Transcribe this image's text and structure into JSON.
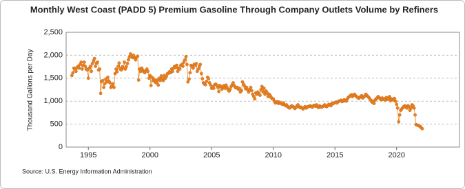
{
  "chart_data": {
    "type": "line",
    "title": "Monthly West Coast (PADD 5) Premium Gasoline Through Company Outlets Volume by Refiners",
    "y_label": "Thousand Gallons per Day",
    "source": "Source: U.S. Energy Information Administration",
    "xlim": [
      1993.2,
      2025.1
    ],
    "xticks": [
      1995,
      2000,
      2005,
      2010,
      2015,
      2020
    ],
    "ylim": [
      0,
      2500
    ],
    "yticks": [
      0,
      500,
      {
        "value": 1000,
        "label": "1,000"
      },
      {
        "value": 1500,
        "label": "1,500"
      },
      {
        "value": 2000,
        "label": "2,000"
      },
      {
        "value": 2500,
        "label": "2,500"
      }
    ],
    "grid": true,
    "x": [
      1993.67,
      1993.75,
      1993.83,
      1993.92,
      1994.0,
      1994.08,
      1994.17,
      1994.25,
      1994.33,
      1994.42,
      1994.5,
      1994.58,
      1994.67,
      1994.75,
      1994.83,
      1994.92,
      1995.0,
      1995.08,
      1995.17,
      1995.25,
      1995.33,
      1995.42,
      1995.5,
      1995.58,
      1995.67,
      1995.75,
      1995.83,
      1995.92,
      1996.0,
      1996.08,
      1996.17,
      1996.25,
      1996.33,
      1996.42,
      1996.5,
      1996.58,
      1996.67,
      1996.75,
      1996.83,
      1996.92,
      1997.0,
      1997.08,
      1997.17,
      1997.25,
      1997.33,
      1997.42,
      1997.5,
      1997.58,
      1997.67,
      1997.75,
      1997.83,
      1997.92,
      1998.0,
      1998.08,
      1998.17,
      1998.25,
      1998.33,
      1998.42,
      1998.5,
      1998.58,
      1998.67,
      1998.75,
      1998.83,
      1998.92,
      1999.0,
      1999.08,
      1999.17,
      1999.25,
      1999.33,
      1999.42,
      1999.5,
      1999.58,
      1999.67,
      1999.75,
      1999.83,
      1999.92,
      2000.0,
      2000.08,
      2000.17,
      2000.25,
      2000.33,
      2000.42,
      2000.5,
      2000.58,
      2000.67,
      2000.75,
      2000.83,
      2000.92,
      2001.0,
      2001.08,
      2001.17,
      2001.25,
      2001.33,
      2001.42,
      2001.5,
      2001.58,
      2001.67,
      2001.75,
      2001.83,
      2001.92,
      2002.0,
      2002.08,
      2002.17,
      2002.25,
      2002.33,
      2002.42,
      2002.5,
      2002.58,
      2002.67,
      2002.75,
      2002.83,
      2002.92,
      2003.0,
      2003.08,
      2003.17,
      2003.25,
      2003.33,
      2003.42,
      2003.5,
      2003.58,
      2003.67,
      2003.75,
      2003.83,
      2003.92,
      2004.0,
      2004.08,
      2004.17,
      2004.25,
      2004.33,
      2004.42,
      2004.5,
      2004.58,
      2004.67,
      2004.75,
      2004.83,
      2004.92,
      2005.0,
      2005.08,
      2005.17,
      2005.25,
      2005.33,
      2005.42,
      2005.5,
      2005.58,
      2005.67,
      2005.75,
      2005.83,
      2005.92,
      2006.0,
      2006.08,
      2006.17,
      2006.25,
      2006.33,
      2006.42,
      2006.5,
      2006.58,
      2006.67,
      2006.75,
      2006.83,
      2006.92,
      2007.0,
      2007.08,
      2007.17,
      2007.25,
      2007.33,
      2007.42,
      2007.5,
      2007.58,
      2007.67,
      2007.75,
      2007.83,
      2007.92,
      2008.0,
      2008.08,
      2008.17,
      2008.25,
      2008.33,
      2008.42,
      2008.5,
      2008.58,
      2008.67,
      2008.75,
      2008.83,
      2008.92,
      2009.0,
      2009.08,
      2009.17,
      2009.25,
      2009.33,
      2009.42,
      2009.5,
      2009.58,
      2009.67,
      2009.75,
      2009.83,
      2009.92,
      2010.0,
      2010.08,
      2010.17,
      2010.25,
      2010.33,
      2010.42,
      2010.5,
      2010.58,
      2010.67,
      2010.75,
      2010.83,
      2010.92,
      2011.0,
      2011.08,
      2011.17,
      2011.25,
      2011.33,
      2011.42,
      2011.5,
      2011.58,
      2011.67,
      2011.75,
      2011.83,
      2011.92,
      2012.0,
      2012.08,
      2012.17,
      2012.25,
      2012.33,
      2012.42,
      2012.5,
      2012.58,
      2012.67,
      2012.75,
      2012.83,
      2012.92,
      2013.0,
      2013.08,
      2013.17,
      2013.25,
      2013.33,
      2013.42,
      2013.5,
      2013.58,
      2013.67,
      2013.75,
      2013.83,
      2013.92,
      2014.0,
      2014.08,
      2014.17,
      2014.25,
      2014.33,
      2014.42,
      2014.5,
      2014.58,
      2014.67,
      2014.75,
      2014.83,
      2014.92,
      2015.0,
      2015.08,
      2015.17,
      2015.25,
      2015.33,
      2015.42,
      2015.5,
      2015.58,
      2015.67,
      2015.75,
      2015.83,
      2015.92,
      2016.0,
      2016.08,
      2016.17,
      2016.25,
      2016.33,
      2016.42,
      2016.5,
      2016.58,
      2016.67,
      2016.75,
      2016.83,
      2016.92,
      2017.0,
      2017.08,
      2017.17,
      2017.25,
      2017.33,
      2017.42,
      2017.5,
      2017.58,
      2017.67,
      2017.75,
      2017.83,
      2017.92,
      2018.0,
      2018.08,
      2018.17,
      2018.25,
      2018.33,
      2018.42,
      2018.5,
      2018.58,
      2018.67,
      2018.75,
      2018.83,
      2018.92,
      2019.0,
      2019.08,
      2019.17,
      2019.25,
      2019.33,
      2019.42,
      2019.5,
      2019.58,
      2019.67,
      2019.75,
      2019.83,
      2019.92,
      2020.0,
      2020.08,
      2020.17,
      2020.25,
      2020.33,
      2020.42,
      2020.5,
      2020.58,
      2020.67,
      2020.75,
      2020.83,
      2020.92,
      2021.0,
      2021.08,
      2021.17,
      2021.25,
      2021.33,
      2021.42,
      2021.5,
      2021.58,
      2021.67,
      2021.75,
      2021.83,
      2021.92,
      2022.0,
      2022.08
    ],
    "series": [
      {
        "color": "#e8821e",
        "values": [
          1560,
          1620,
          1720,
          1700,
          1650,
          1730,
          1760,
          1720,
          1800,
          1850,
          1700,
          1780,
          1850,
          1760,
          1700,
          1680,
          1500,
          1720,
          1760,
          1650,
          1820,
          1880,
          1930,
          1760,
          1830,
          1850,
          1680,
          1700,
          1170,
          1430,
          1450,
          1300,
          1380,
          1480,
          1420,
          1520,
          1440,
          1400,
          1300,
          1330,
          1380,
          1300,
          1600,
          1700,
          1640,
          1760,
          1830,
          1700,
          1680,
          1750,
          1720,
          1850,
          1700,
          1750,
          1820,
          1900,
          1960,
          2030,
          1980,
          1950,
          2000,
          1940,
          1900,
          1960,
          1980,
          1460,
          1700,
          1650,
          1720,
          1680,
          1640,
          1620,
          1660,
          1700,
          1650,
          1500,
          1560,
          1340,
          1520,
          1450,
          1480,
          1420,
          1400,
          1460,
          1350,
          1500,
          1450,
          1550,
          1500,
          1450,
          1560,
          1500,
          1540,
          1600,
          1610,
          1640,
          1620,
          1700,
          1650,
          1720,
          1760,
          1730,
          1780,
          1650,
          1720,
          1700,
          1780,
          1800,
          1760,
          1850,
          1900,
          1970,
          1800,
          1420,
          1480,
          1620,
          1780,
          1750,
          1720,
          1800,
          1780,
          1820,
          1650,
          1700,
          1760,
          1800,
          1600,
          1490,
          1400,
          1370,
          1360,
          1430,
          1520,
          1490,
          1400,
          1350,
          1280,
          1310,
          1280,
          1360,
          1370,
          1350,
          1300,
          1210,
          1340,
          1320,
          1260,
          1300,
          1340,
          1280,
          1350,
          1300,
          1250,
          1220,
          1260,
          1320,
          1360,
          1400,
          1340,
          1300,
          1290,
          1300,
          1260,
          1280,
          1200,
          1230,
          1420,
          1370,
          1330,
          1270,
          1300,
          1250,
          1200,
          1250,
          1300,
          1230,
          1150,
          1100,
          1050,
          1180,
          1150,
          1200,
          1160,
          1130,
          1250,
          1320,
          1200,
          1280,
          1150,
          1220,
          1180,
          1100,
          1150,
          1120,
          1080,
          1050,
          1050,
          1000,
          960,
          980,
          990,
          950,
          980,
          960,
          940,
          930,
          960,
          920,
          900,
          920,
          880,
          860,
          850,
          880,
          900,
          880,
          870,
          840,
          860,
          900,
          920,
          880,
          860,
          870,
          850,
          830,
          860,
          880,
          850,
          870,
          880,
          890,
          900,
          880,
          870,
          900,
          910,
          890,
          920,
          880,
          860,
          900,
          880,
          870,
          880,
          900,
          920,
          890,
          880,
          900,
          930,
          920,
          900,
          950,
          940,
          960,
          970,
          980,
          960,
          990,
          1000,
          1010,
          1020,
          990,
          1000,
          1030,
          1010,
          1000,
          1050,
          1080,
          1100,
          1120,
          1140,
          1100,
          1130,
          1150,
          1120,
          1100,
          1080,
          1060,
          1080,
          1100,
          1120,
          1070,
          1090,
          1110,
          1150,
          1130,
          1100,
          1080,
          1050,
          1020,
          980,
          1000,
          950,
          1020,
          1050,
          1070,
          1100,
          1080,
          1050,
          1030,
          1070,
          1040,
          1050,
          1020,
          1080,
          1040,
          1060,
          1100,
          1010,
          1050,
          1040,
          1020,
          1060,
          1000,
          930,
          850,
          550,
          700,
          800,
          830,
          860,
          880,
          900,
          870,
          850,
          900,
          880,
          800,
          850,
          920,
          900,
          850,
          700,
          490,
          480,
          470,
          460,
          450,
          420,
          400
        ]
      }
    ]
  }
}
